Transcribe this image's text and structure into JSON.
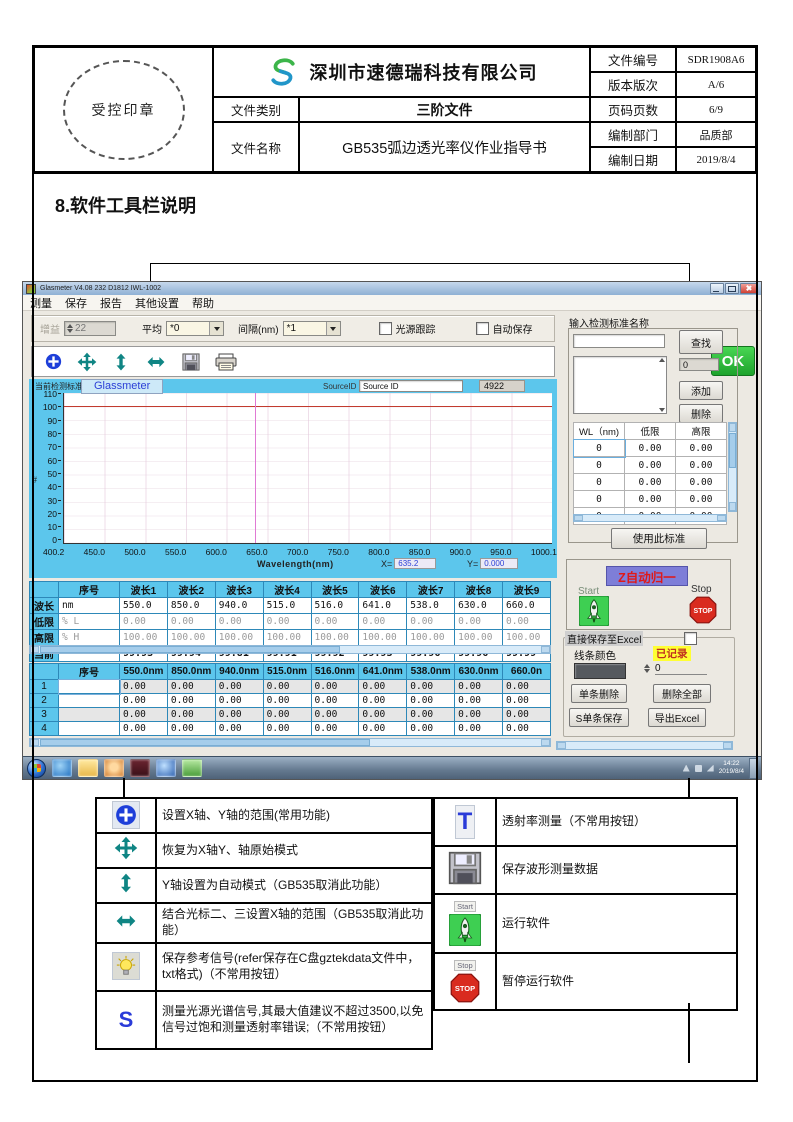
{
  "doc_header": {
    "stamp_text": "受控印章",
    "company_name": "深圳市速德瑞科技有限公司",
    "doc_no_label": "文件编号",
    "doc_no": "SDR1908A6",
    "version_label": "版本版次",
    "version": "A/6",
    "category_label": "文件类别",
    "category": "三阶文件",
    "pages_label": "页码页数",
    "pages": "6/9",
    "doc_name_label": "文件名称",
    "doc_name": "GB535弧边透光率仪作业指导书",
    "dept_label": "编制部门",
    "dept": "品质部",
    "date_label": "编制日期",
    "date": "2019/8/4"
  },
  "section_title": "8.软件工具栏说明",
  "app": {
    "window_title": "Glasmeter V4.08 232 D1812 IWL-1002",
    "menu_items": [
      "测量",
      "保存",
      "报告",
      "其他设置",
      "帮助"
    ],
    "controls": {
      "gain_label": "增益",
      "gain_value": "22",
      "avg_label": "平均",
      "avg_value": "*0",
      "interval_label": "间隔(nm)",
      "interval_value": "*1",
      "track_checkbox": "光源跟踪",
      "autosave_checkbox": "自动保存",
      "ok_button": "OK"
    },
    "chart": {
      "overlay_label": "当前检测标准",
      "watermark": "Glassmeter",
      "source_id_label": "SourceID",
      "source_id_value": "Source ID",
      "gain_readout": "4922",
      "y_axis_label": "#",
      "y_ticks": [
        "110",
        "100",
        "90",
        "80",
        "70",
        "60",
        "50",
        "40",
        "30",
        "20",
        "10",
        "0"
      ],
      "x_ticks": [
        "400.2",
        "450.0",
        "500.0",
        "550.0",
        "600.0",
        "650.0",
        "700.0",
        "750.0",
        "800.0",
        "850.0",
        "900.0",
        "950.0",
        "1000.1"
      ],
      "x_axis_label": "Wavelength(nm)",
      "cursor": {
        "x_label": "X=",
        "x_value": "635.2",
        "y_label": "Y=",
        "y_value": "0.000"
      },
      "reference_line_y": 100
    },
    "limits_table": {
      "headers": [
        "",
        "序号",
        "波长1",
        "波长2",
        "波长3",
        "波长4",
        "波长5",
        "波长6",
        "波长7",
        "波长8",
        "波长9"
      ],
      "rows": [
        [
          "波长",
          "nm",
          "550.0",
          "850.0",
          "940.0",
          "515.0",
          "516.0",
          "641.0",
          "538.0",
          "630.0",
          "660.0"
        ],
        [
          "低限",
          "% L",
          "0.00",
          "0.00",
          "0.00",
          "0.00",
          "0.00",
          "0.00",
          "0.00",
          "0.00",
          "0.00"
        ],
        [
          "高限",
          "% H",
          "100.00",
          "100.00",
          "100.00",
          "100.00",
          "100.00",
          "100.00",
          "100.00",
          "100.00",
          "100.00"
        ],
        [
          "当前",
          "--",
          "99.93",
          "99.94",
          "99.81",
          "99.91",
          "99.92",
          "99.93",
          "99.96",
          "99.96",
          "99.99"
        ]
      ]
    },
    "records_table": {
      "headers": [
        "",
        "序号",
        "550.0nm",
        "850.0nm",
        "940.0nm",
        "515.0nm",
        "516.0nm",
        "641.0nm",
        "538.0nm",
        "630.0nm",
        "660.0n"
      ],
      "rows": [
        [
          "1",
          "",
          "0.00",
          "0.00",
          "0.00",
          "0.00",
          "0.00",
          "0.00",
          "0.00",
          "0.00",
          "0.00"
        ],
        [
          "2",
          "",
          "0.00",
          "0.00",
          "0.00",
          "0.00",
          "0.00",
          "0.00",
          "0.00",
          "0.00",
          "0.00"
        ],
        [
          "3",
          "",
          "0.00",
          "0.00",
          "0.00",
          "0.00",
          "0.00",
          "0.00",
          "0.00",
          "0.00",
          "0.00"
        ],
        [
          "4",
          "",
          "0.00",
          "0.00",
          "0.00",
          "0.00",
          "0.00",
          "0.00",
          "0.00",
          "0.00",
          "0.00"
        ]
      ]
    },
    "standards_panel": {
      "title": "输入检测标准名称",
      "search_button": "查找",
      "match_count": "0",
      "add_button": "添加",
      "delete_button": "删除",
      "grid": {
        "headers": [
          "WL（nm)",
          "低限",
          "高限"
        ],
        "rows": [
          [
            "0",
            "0.00",
            "0.00"
          ],
          [
            "0",
            "0.00",
            "0.00"
          ],
          [
            "0",
            "0.00",
            "0.00"
          ],
          [
            "0",
            "0.00",
            "0.00"
          ],
          [
            "0",
            "0.00",
            "0.00"
          ]
        ]
      },
      "use_button": "使用此标准"
    },
    "run_panel": {
      "normalize_button": "Z自动归一",
      "start_label": "Start",
      "stop_label": "Stop",
      "excel_group_label": "直接保存至Excel",
      "line_color_label": "线条颜色",
      "recorded_badge": "已记录",
      "record_count": "0",
      "delete_one_button": "单条删除",
      "delete_all_button": "删除全部",
      "save_one_button": "S单条保存",
      "export_button": "导出Excel"
    },
    "taskbar": {
      "clock_time": "14:22",
      "clock_date": "2019/8/4"
    }
  },
  "icons": {
    "s_glyph": "S",
    "t_glyph": "T",
    "stop_sign_text": "STOP"
  },
  "legend": {
    "left_rows": [
      {
        "text": "设置X轴、Y轴的范围(常用功能)"
      },
      {
        "text": "恢复为X轴Y、轴原始模式"
      },
      {
        "text": "Y轴设置为自动模式（GB535取消此功能）"
      },
      {
        "text": "结合光标二、三设置X轴的范围（GB535取消此功能）"
      },
      {
        "text": "保存参考信号(refer保存在C盘gztekdata文件中，txt格式)（不常用按钮）"
      },
      {
        "text": "测量光源光谱信号,其最大值建议不超过3500,以免信号过饱和测量透射率错误;（不常用按钮）"
      }
    ],
    "right_rows": [
      {
        "text": "透射率测量（不常用按钮）"
      },
      {
        "text": "保存波形测量数据"
      },
      {
        "text": "运行软件"
      },
      {
        "text": "暂停运行软件"
      }
    ]
  },
  "colors": {
    "chart_background": "#5cc6ec",
    "ok_green": "#1ea32c",
    "normalize_purple": "#7e7ed8",
    "recorded_yellow": "#ffff33",
    "reference_red": "#c23b2e",
    "cursor_pink": "#e07ad4",
    "line_color_swatch": "#55595e"
  }
}
